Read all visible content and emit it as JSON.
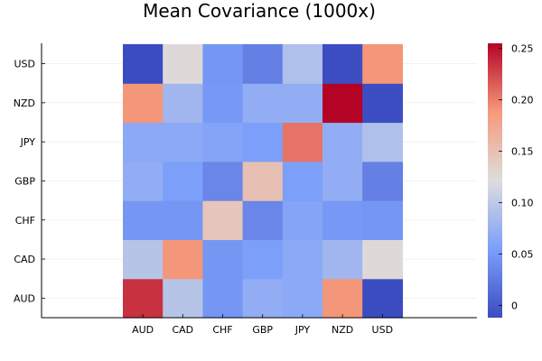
{
  "chart_data": {
    "type": "heatmap",
    "title": "Mean Covariance (1000x)",
    "xlabel": "",
    "ylabel": "",
    "x_categories": [
      "AUD",
      "CAD",
      "CHF",
      "GBP",
      "JPY",
      "NZD",
      "USD"
    ],
    "y_categories": [
      "AUD",
      "CAD",
      "CHF",
      "GBP",
      "JPY",
      "NZD",
      "USD"
    ],
    "values": [
      [
        0.235,
        0.095,
        0.048,
        0.07,
        0.065,
        0.19,
        -0.012
      ],
      [
        0.095,
        0.19,
        0.048,
        0.055,
        0.065,
        0.08,
        0.125
      ],
      [
        0.048,
        0.048,
        0.145,
        0.035,
        0.06,
        0.05,
        0.048
      ],
      [
        0.07,
        0.055,
        0.035,
        0.15,
        0.055,
        0.07,
        0.03
      ],
      [
        0.065,
        0.065,
        0.06,
        0.055,
        0.205,
        0.07,
        0.09
      ],
      [
        0.19,
        0.08,
        0.05,
        0.07,
        0.07,
        0.255,
        -0.01
      ],
      [
        -0.012,
        0.125,
        0.048,
        0.03,
        0.09,
        -0.01,
        0.19
      ]
    ],
    "colorbar": {
      "min": -0.012,
      "max": 0.255,
      "ticks": [
        0,
        0.05,
        0.1,
        0.15,
        0.2,
        0.25
      ],
      "tick_labels": [
        "0",
        "0.05",
        "0.10",
        "0.15",
        "0.20",
        "0.25"
      ],
      "colormap": "coolwarm"
    },
    "grid": true,
    "legend": "none"
  }
}
